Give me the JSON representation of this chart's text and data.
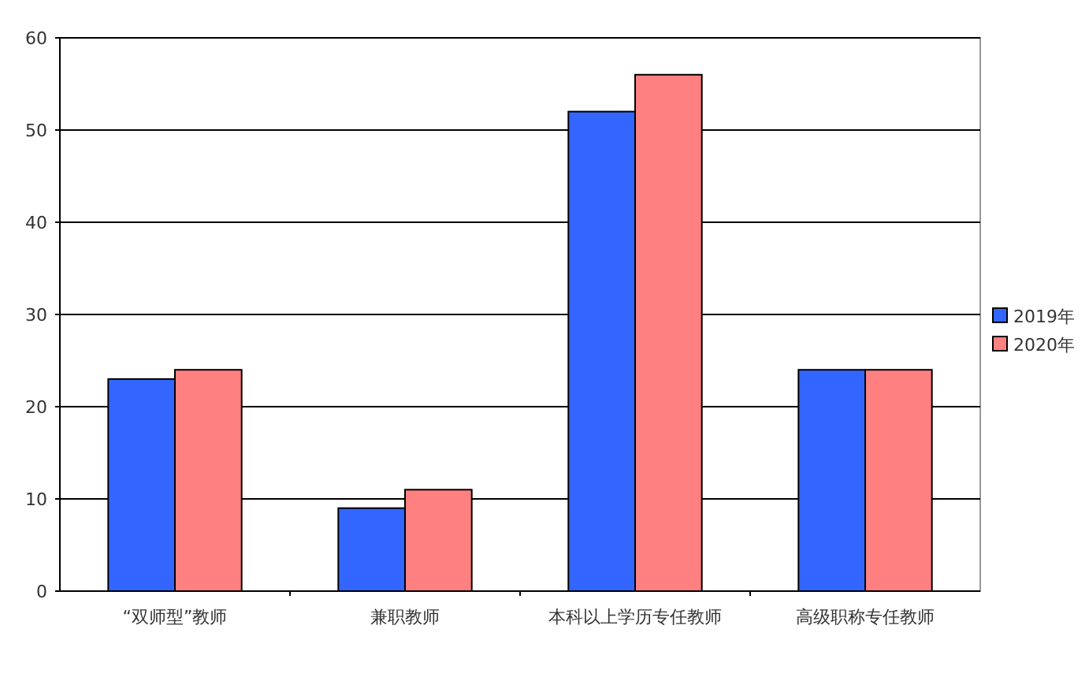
{
  "chart_data": {
    "type": "bar",
    "categories": [
      "“双师型”教师",
      "兼职教师",
      "本科以上学历专任教师",
      "高级职称专任教师"
    ],
    "series": [
      {
        "name": "2019年",
        "color": "#3366ff",
        "values": [
          23,
          9,
          52,
          24
        ]
      },
      {
        "name": "2020年",
        "color": "#ff8080",
        "values": [
          24,
          11,
          56,
          24
        ]
      }
    ],
    "ylim": [
      0,
      60
    ],
    "yticks": [
      0,
      10,
      20,
      30,
      40,
      50,
      60
    ],
    "grid": "y",
    "legend": "right"
  }
}
